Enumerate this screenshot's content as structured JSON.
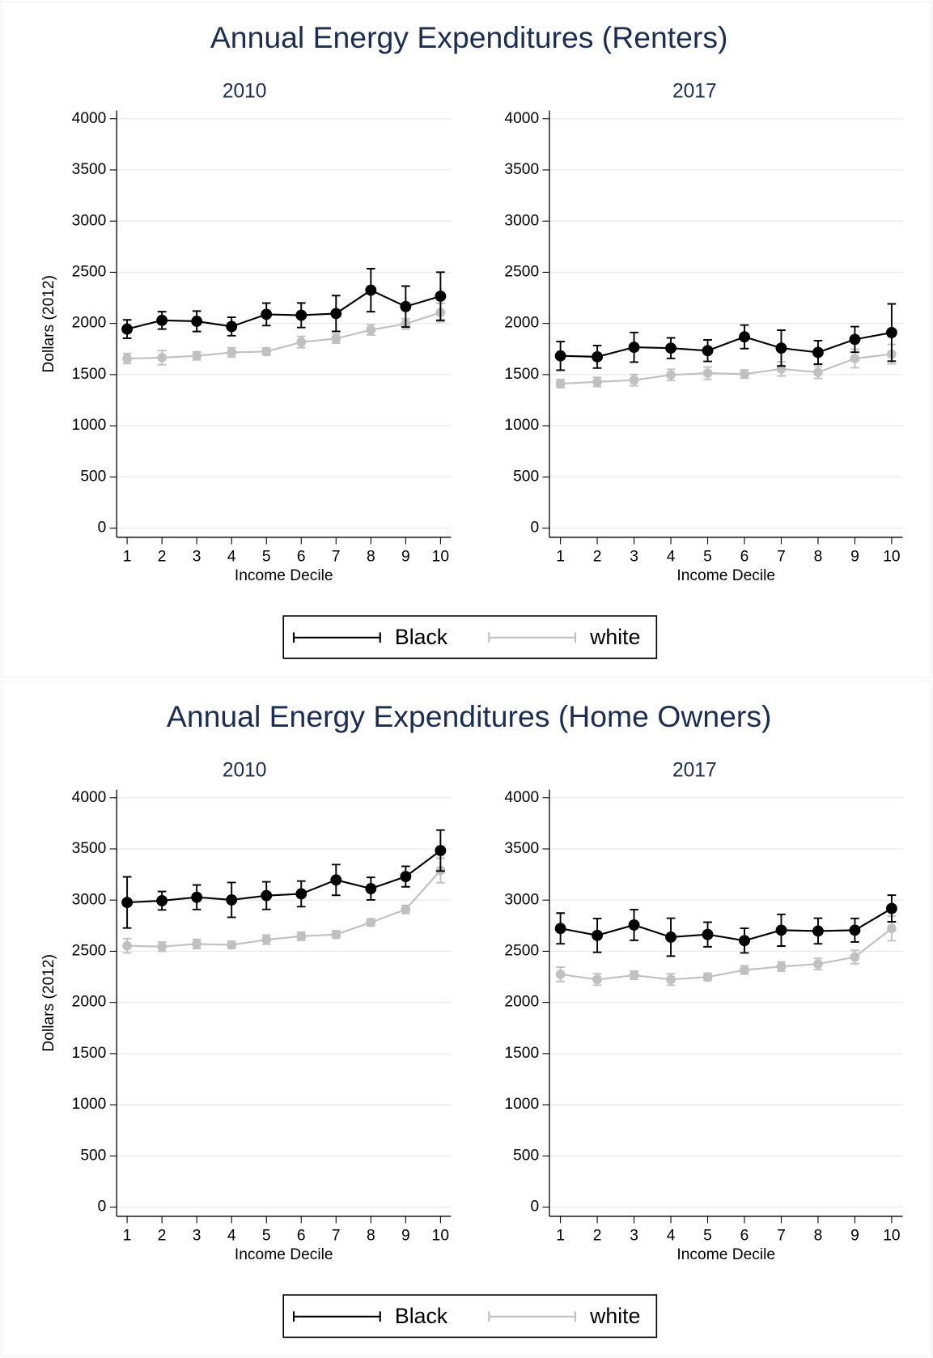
{
  "chart_data": [
    {
      "type": "line",
      "title": "Annual Energy Expenditures (Renters)",
      "xlabel": "Income Decile",
      "ylabel": "Dollars (2012)",
      "x": [
        1,
        2,
        3,
        4,
        5,
        6,
        7,
        8,
        9,
        10
      ],
      "xlim": [
        0.7,
        10.3
      ],
      "ylim": [
        -90,
        4080
      ],
      "yticks": [
        0,
        500,
        1000,
        1500,
        2000,
        2500,
        3000,
        3500,
        4000
      ],
      "grid": true,
      "legend": "bottom",
      "series": [
        {
          "name": "Black",
          "color": "#000000"
        },
        {
          "name": "white",
          "color": "#c0c0c0"
        }
      ],
      "panels": [
        {
          "subtitle": "2010",
          "series": [
            {
              "values": [
                1945,
                2030,
                2021,
                1970,
                2089,
                2080,
                2097,
                2325,
                2165,
                2266
              ],
              "errors": [
                90,
                85,
                100,
                90,
                110,
                120,
                175,
                210,
                200,
                235
              ]
            },
            {
              "values": [
                1657,
                1666,
                1683,
                1717,
                1725,
                1818,
                1852,
                1937,
                1996,
                2106
              ],
              "errors": [
                50,
                70,
                40,
                45,
                35,
                55,
                45,
                50,
                50,
                90
              ]
            }
          ]
        },
        {
          "subtitle": "2017",
          "series": [
            {
              "values": [
                1683,
                1674,
                1767,
                1759,
                1734,
                1869,
                1759,
                1717,
                1844,
                1911
              ],
              "errors": [
                140,
                110,
                145,
                100,
                105,
                115,
                175,
                115,
                125,
                280
              ]
            },
            {
              "values": [
                1412,
                1429,
                1446,
                1497,
                1514,
                1505,
                1556,
                1522,
                1657,
                1700
              ],
              "errors": [
                40,
                45,
                55,
                55,
                60,
                40,
                70,
                60,
                90,
                95
              ]
            }
          ]
        }
      ]
    },
    {
      "type": "line",
      "title": "Annual Energy Expenditures (Home Owners)",
      "xlabel": "Income Decile",
      "ylabel": "Dollars (2012)",
      "x": [
        1,
        2,
        3,
        4,
        5,
        6,
        7,
        8,
        9,
        10
      ],
      "xlim": [
        0.7,
        10.3
      ],
      "ylim": [
        -90,
        4080
      ],
      "yticks": [
        0,
        500,
        1000,
        1500,
        2000,
        2500,
        3000,
        3500,
        4000
      ],
      "grid": true,
      "legend": "bottom",
      "series": [
        {
          "name": "Black",
          "color": "#000000"
        },
        {
          "name": "white",
          "color": "#c0c0c0"
        }
      ],
      "panels": [
        {
          "subtitle": "2010",
          "series": [
            {
              "values": [
                2977,
                2994,
                3028,
                3002,
                3044,
                3061,
                3197,
                3112,
                3230,
                3484
              ],
              "errors": [
                250,
                90,
                120,
                170,
                135,
                125,
                150,
                110,
                100,
                200
              ]
            },
            {
              "values": [
                2554,
                2545,
                2571,
                2562,
                2613,
                2647,
                2664,
                2782,
                2909,
                3290
              ],
              "errors": [
                70,
                45,
                45,
                35,
                45,
                40,
                35,
                35,
                40,
                120
              ]
            }
          ]
        },
        {
          "subtitle": "2017",
          "series": [
            {
              "values": [
                2723,
                2655,
                2757,
                2638,
                2664,
                2604,
                2706,
                2698,
                2706,
                2918
              ],
              "errors": [
                150,
                165,
                150,
                185,
                120,
                120,
                155,
                125,
                115,
                130
              ]
            },
            {
              "values": [
                2275,
                2224,
                2266,
                2224,
                2249,
                2317,
                2351,
                2376,
                2444,
                2723
              ],
              "errors": [
                70,
                55,
                40,
                55,
                35,
                40,
                45,
                55,
                65,
                120
              ]
            }
          ]
        }
      ]
    }
  ]
}
